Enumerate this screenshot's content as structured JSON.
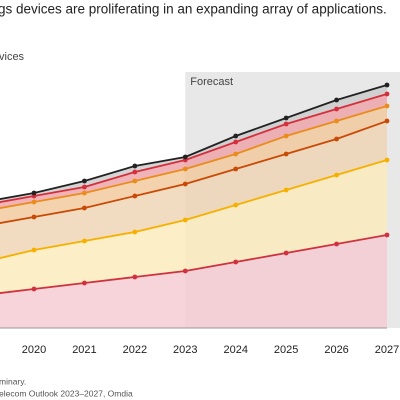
{
  "chart_data": {
    "type": "stacked_area",
    "title": "gs devices are proliferating in an expanding array of applications.",
    "subtitle": "vices",
    "footnotes": [
      "minary.",
      "elecom Outlook 2023–2027, Omdia"
    ],
    "forecast": {
      "label": "Forecast",
      "start": "2023"
    },
    "categories": [
      null,
      "2020",
      "2021",
      "2022",
      "2023",
      "2024",
      "2025",
      "2026",
      "2027"
    ],
    "ylim": [
      0,
      100
    ],
    "series": [
      {
        "color": "#d0313f",
        "fill": "#f4c9d0",
        "values": [
          11,
          13,
          15,
          17,
          19,
          22,
          25,
          28,
          31
        ]
      },
      {
        "color": "#f5b000",
        "fill": "#fbeab8",
        "values": [
          11,
          13,
          14,
          15,
          17,
          19,
          21,
          23,
          25
        ]
      },
      {
        "color": "#c94a05",
        "fill": "#efd3b2",
        "values": [
          12,
          11,
          11,
          12,
          12,
          12,
          12,
          12,
          13
        ]
      },
      {
        "color": "#ea8c1c",
        "fill": "#f3c79a",
        "values": [
          5,
          5,
          5,
          5,
          5,
          5,
          6,
          6,
          5
        ]
      },
      {
        "color": "#d62f3c",
        "fill": "#eca0a6",
        "values": [
          2,
          2,
          2,
          3,
          3,
          4,
          4,
          4,
          4
        ]
      },
      {
        "color": "#222222",
        "fill": "#c9c9c9",
        "values": [
          1,
          1,
          2,
          2,
          1,
          2,
          2,
          3,
          3
        ]
      }
    ]
  }
}
